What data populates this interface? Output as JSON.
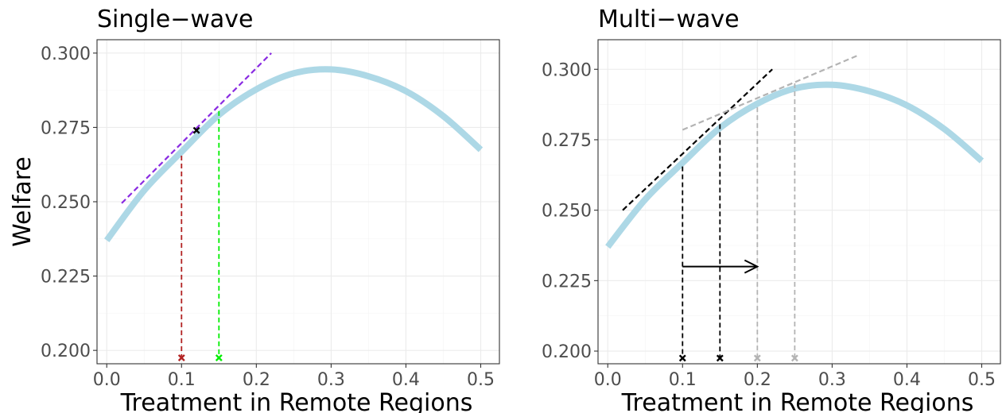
{
  "figure": {
    "shared_xlabel": "Treatment in Remote Regions",
    "shared_ylabel": "Welfare"
  },
  "colors": {
    "curve": "#add8e6",
    "single_marker_a": "#b22222",
    "single_marker_b": "#00ee00",
    "single_tangent": "#8a2be2",
    "multi_first_wave": "#000000",
    "multi_second_wave": "#b3b3b3"
  },
  "chart_data": [
    {
      "type": "line",
      "title": "Single−wave",
      "xlabel": "Treatment in Remote Regions",
      "ylabel": "Welfare",
      "xlim": [
        -0.013,
        0.525
      ],
      "ylim": [
        0.1955,
        0.3045
      ],
      "xticks": [
        0.0,
        0.1,
        0.2,
        0.3,
        0.4,
        0.5
      ],
      "xtick_labels": [
        "0.0",
        "0.1",
        "0.2",
        "0.3",
        "0.4",
        "0.5"
      ],
      "yticks": [
        0.2,
        0.225,
        0.25,
        0.275,
        0.3
      ],
      "ytick_labels": [
        "0.200",
        "0.225",
        "0.250",
        "0.275",
        "0.300"
      ],
      "grid": true,
      "curve": {
        "x": [
          0.0,
          0.05,
          0.1,
          0.15,
          0.2,
          0.25,
          0.3,
          0.35,
          0.4,
          0.45,
          0.5
        ],
        "y": [
          0.237,
          0.2538,
          0.2668,
          0.2792,
          0.2878,
          0.2932,
          0.2945,
          0.2922,
          0.2872,
          0.2788,
          0.2675
        ]
      },
      "tangent_lines": [
        {
          "x": [
            0.02,
            0.22
          ],
          "y": [
            0.2495,
            0.3
          ],
          "color": "#8a2be2"
        }
      ],
      "drop_lines": [
        {
          "x": 0.1,
          "y_top": 0.2655,
          "color": "#b22222"
        },
        {
          "x": 0.15,
          "y_top": 0.2805,
          "color": "#00ee00"
        }
      ],
      "markers": [
        {
          "x": 0.12,
          "y": 0.274,
          "color": "#000000"
        },
        {
          "x": 0.1,
          "y": 0.1975,
          "color": "#b22222"
        },
        {
          "x": 0.15,
          "y": 0.1975,
          "color": "#00ee00"
        }
      ],
      "arrows": []
    },
    {
      "type": "line",
      "title": "Multi−wave",
      "xlabel": "Treatment in Remote Regions",
      "ylabel": "",
      "xlim": [
        -0.013,
        0.525
      ],
      "ylim": [
        0.1955,
        0.3105
      ],
      "xticks": [
        0.0,
        0.1,
        0.2,
        0.3,
        0.4,
        0.5
      ],
      "xtick_labels": [
        "0.0",
        "0.1",
        "0.2",
        "0.3",
        "0.4",
        "0.5"
      ],
      "yticks": [
        0.2,
        0.225,
        0.25,
        0.275,
        0.3
      ],
      "ytick_labels": [
        "0.200",
        "0.225",
        "0.250",
        "0.275",
        "0.300"
      ],
      "grid": true,
      "curve": {
        "x": [
          0.0,
          0.05,
          0.1,
          0.15,
          0.2,
          0.25,
          0.3,
          0.35,
          0.4,
          0.45,
          0.5
        ],
        "y": [
          0.237,
          0.2538,
          0.2668,
          0.2792,
          0.2878,
          0.2932,
          0.2945,
          0.2922,
          0.2872,
          0.2788,
          0.2675
        ]
      },
      "tangent_lines": [
        {
          "x": [
            0.02,
            0.22
          ],
          "y": [
            0.25,
            0.3
          ],
          "color": "#000000"
        },
        {
          "x": [
            0.1,
            0.335
          ],
          "y": [
            0.2785,
            0.305
          ],
          "color": "#b3b3b3"
        }
      ],
      "drop_lines": [
        {
          "x": 0.1,
          "y_top": 0.2655,
          "color": "#000000"
        },
        {
          "x": 0.15,
          "y_top": 0.2805,
          "color": "#000000"
        },
        {
          "x": 0.2,
          "y_top": 0.2865,
          "color": "#b3b3b3"
        },
        {
          "x": 0.25,
          "y_top": 0.295,
          "color": "#b3b3b3"
        }
      ],
      "markers": [
        {
          "x": 0.1,
          "y": 0.1975,
          "color": "#000000"
        },
        {
          "x": 0.15,
          "y": 0.1975,
          "color": "#000000"
        },
        {
          "x": 0.2,
          "y": 0.1975,
          "color": "#b3b3b3"
        },
        {
          "x": 0.25,
          "y": 0.1975,
          "color": "#b3b3b3"
        }
      ],
      "arrows": [
        {
          "x0": 0.1,
          "x1": 0.2,
          "y": 0.23,
          "color": "#000000"
        }
      ]
    }
  ]
}
